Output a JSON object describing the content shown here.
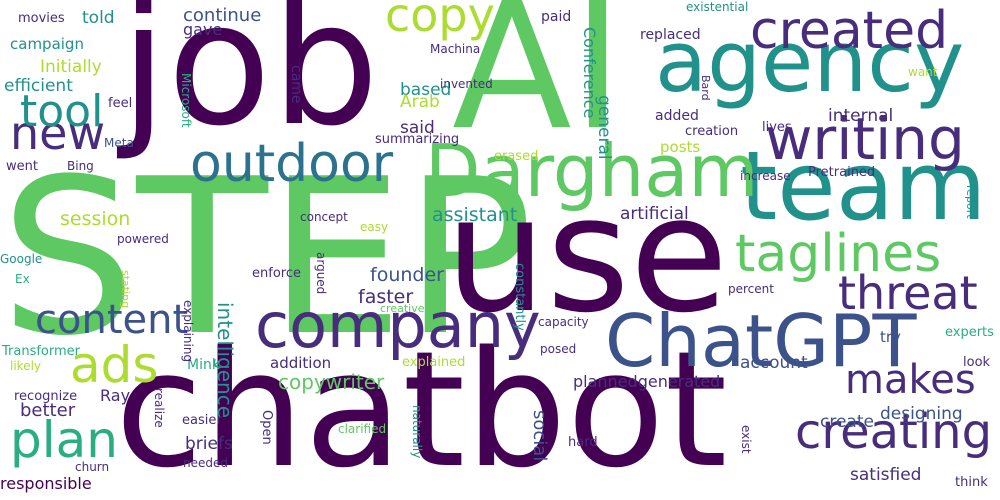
{
  "palette": {
    "background": "#ffffff",
    "dark_purple": "#440154",
    "purple": "#472d7b",
    "indigo": "#3b528b",
    "blue": "#2c728e",
    "teal": "#21918c",
    "green_teal": "#28ae80",
    "green": "#5ec962",
    "lime": "#addc30",
    "yellow": "#fde725"
  },
  "words": [
    "STEP",
    "chatbot",
    "AI",
    "job",
    "use",
    "team",
    "agency",
    "Dargham",
    "ChatGPT",
    "company",
    "writing",
    "created",
    "outdoor",
    "taglines",
    "content",
    "creating",
    "copy",
    "threat",
    "makes",
    "ads",
    "plan",
    "new",
    "tool",
    "copywriter",
    "founder",
    "faster",
    "account",
    "plannedgenerated",
    "designing",
    "satisfied",
    "intelligence",
    "artificial",
    "assistant",
    "session",
    "Mink",
    "addition",
    "Ray",
    "better",
    "briefs",
    "create",
    "try",
    "social",
    "internal",
    "posts",
    "general",
    "said",
    "based",
    "Arab",
    "Conference",
    "paid",
    "continue",
    "gave",
    "came",
    "told",
    "campaign",
    "Initially",
    "efficient",
    "responsible",
    "movies",
    "replaced",
    "existential",
    "Machina",
    "invented",
    "Bard",
    "want",
    "added",
    "creation",
    "lives",
    "increase",
    "Pretrained",
    "report",
    "summarizing",
    "erased",
    "Meta",
    "Microsoft",
    "Bing",
    "went",
    "feel",
    "concept",
    "powered",
    "explaining",
    "argued",
    "enforce",
    "easy",
    "constantly",
    "creative",
    "capacity",
    "percent",
    "experts",
    "posed",
    "explained",
    "realize",
    "likely",
    "recognize",
    "Transformer",
    "Google",
    "Ex",
    "stating",
    "look",
    "exist",
    "hard",
    "clarified",
    "easier",
    "needed",
    "Open",
    "naturally",
    "churn",
    "think"
  ]
}
